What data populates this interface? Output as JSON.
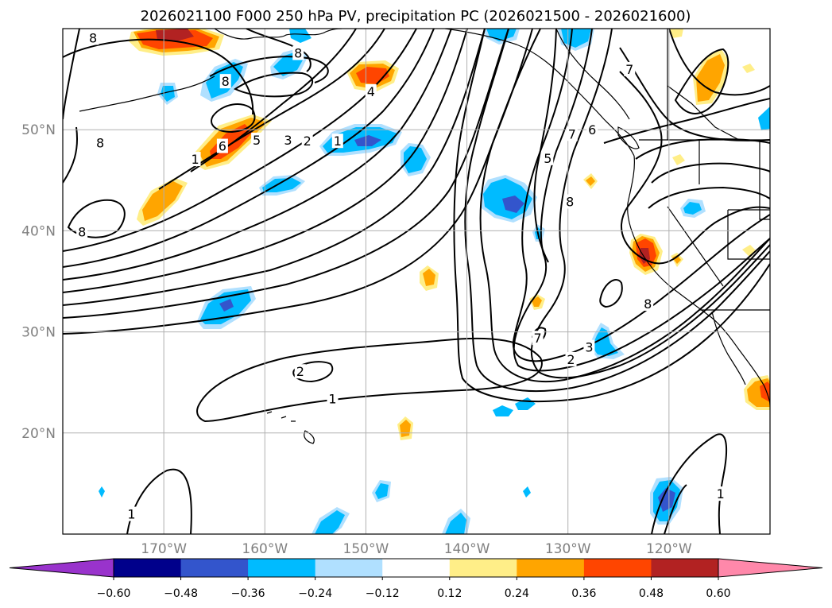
{
  "title": "2026021100 F000 250 hPa PV, precipitation PC (2026021500 - 2026021600)",
  "map": {
    "lon_range": [
      -180,
      -110
    ],
    "lat_range": [
      10,
      60
    ],
    "lon_ticks": [
      {
        "value": -170,
        "label": "170°W"
      },
      {
        "value": -160,
        "label": "160°W"
      },
      {
        "value": -150,
        "label": "150°W"
      },
      {
        "value": -140,
        "label": "140°W"
      },
      {
        "value": -130,
        "label": "130°W"
      },
      {
        "value": -120,
        "label": "120°W"
      }
    ],
    "lat_ticks": [
      {
        "value": 20,
        "label": "20°N"
      },
      {
        "value": 30,
        "label": "30°N"
      },
      {
        "value": 40,
        "label": "40°N"
      },
      {
        "value": 50,
        "label": "50°N"
      }
    ],
    "gridline_color": "#b0b0b0",
    "label_color": "#808080"
  },
  "colorbar": {
    "colors": [
      "#9933cc",
      "#00008b",
      "#3355cc",
      "#00bbff",
      "#b0e0ff",
      "#ffffff",
      "#ffee88",
      "#ffa500",
      "#ff4500",
      "#b22222",
      "#ff88aa"
    ],
    "tick_labels": [
      "−0.60",
      "−0.48",
      "−0.36",
      "−0.24",
      "−0.12",
      "0.12",
      "0.24",
      "0.36",
      "0.48",
      "0.60"
    ]
  },
  "pv_contour_labels": [
    {
      "text": "8",
      "lon": -177,
      "lat": 59.1
    },
    {
      "text": "8",
      "lon": -176.3,
      "lat": 48.7
    },
    {
      "text": "8",
      "lon": -178.1,
      "lat": 39.9
    },
    {
      "text": "8",
      "lon": -163.9,
      "lat": 54.8
    },
    {
      "text": "8",
      "lon": -156.7,
      "lat": 57.6
    },
    {
      "text": "1",
      "lon": -166.9,
      "lat": 47.1
    },
    {
      "text": "6",
      "lon": -164.2,
      "lat": 48.4
    },
    {
      "text": "5",
      "lon": -160.8,
      "lat": 49.0
    },
    {
      "text": "3",
      "lon": -157.7,
      "lat": 49.0
    },
    {
      "text": "2",
      "lon": -155.8,
      "lat": 48.9
    },
    {
      "text": "1",
      "lon": -152.8,
      "lat": 48.9
    },
    {
      "text": "4",
      "lon": -149.5,
      "lat": 53.8
    },
    {
      "text": "5",
      "lon": -132.0,
      "lat": 47.2
    },
    {
      "text": "7",
      "lon": -129.6,
      "lat": 49.6
    },
    {
      "text": "6",
      "lon": -127.6,
      "lat": 50.0
    },
    {
      "text": "7",
      "lon": -123.9,
      "lat": 56.0
    },
    {
      "text": "8",
      "lon": -129.8,
      "lat": 42.9
    },
    {
      "text": "8",
      "lon": -122.1,
      "lat": 32.8
    },
    {
      "text": "7",
      "lon": -133.0,
      "lat": 29.4
    },
    {
      "text": "3",
      "lon": -127.9,
      "lat": 28.5
    },
    {
      "text": "2",
      "lon": -129.7,
      "lat": 27.3
    },
    {
      "text": "2",
      "lon": -156.5,
      "lat": 26.1
    },
    {
      "text": "1",
      "lon": -153.3,
      "lat": 23.4
    },
    {
      "text": "1",
      "lon": -173.2,
      "lat": 12.0
    },
    {
      "text": "1",
      "lon": -114.9,
      "lat": 14.0
    }
  ]
}
